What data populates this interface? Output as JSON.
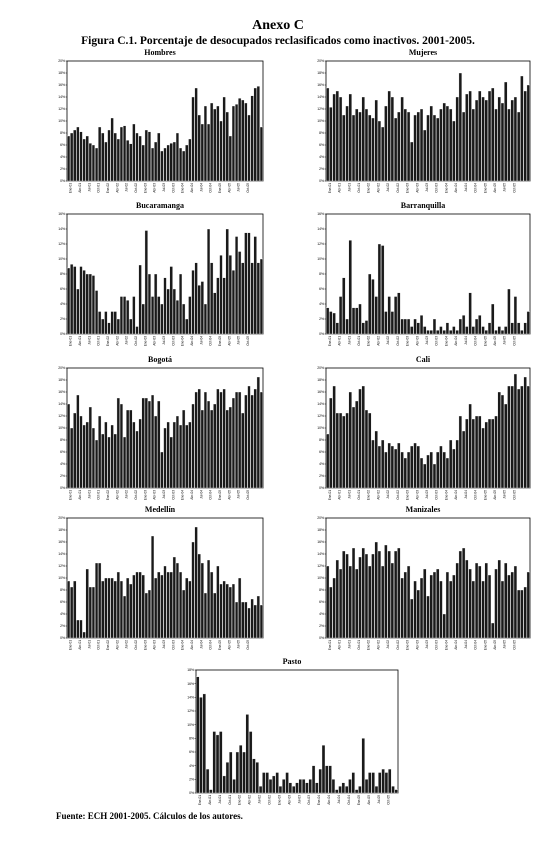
{
  "header": {
    "title": "Anexo C",
    "subtitle": "Figura C.1. Porcentaje de desocupados reclasificados como inactivos. 2001-2005."
  },
  "footnote": "Fuente: ECH 2001-2005. Cálculos de los autores.",
  "colors": {
    "bar_fill": "#1a1a1a",
    "bar_edge": "#ffffff",
    "axis": "#000000"
  },
  "chart_data": [
    {
      "id": "hombres",
      "type": "bar",
      "title": "Hombres",
      "ylim": [
        0,
        20
      ],
      "yticks": [
        "0%",
        "2%",
        "4%",
        "6%",
        "8%",
        "10%",
        "12%",
        "14%",
        "16%",
        "18%",
        "20%"
      ],
      "xticks": [
        "Ene-01",
        "Abr-01",
        "Jul-01",
        "Oct-01",
        "Ene-02",
        "Abr-02",
        "Jul-02",
        "Oct-02",
        "Ene-03",
        "Abr-03",
        "Jul-03",
        "Oct-03",
        "Ene-04",
        "Abr-04",
        "Jul-04",
        "Oct-04",
        "Ene-05",
        "Abr-05",
        "Jul-05",
        "Oct-05"
      ],
      "values": [
        7.5,
        8,
        8.5,
        9,
        8.2,
        7,
        7.5,
        6.3,
        6,
        5.5,
        9,
        8,
        6.5,
        8.5,
        10.5,
        8,
        7,
        9,
        9.2,
        6.8,
        6.2,
        9.5,
        8,
        7.5,
        6,
        8.5,
        8.2,
        5.5,
        6.5,
        8,
        5,
        5.5,
        6,
        6.3,
        6.5,
        8,
        5.5,
        5,
        6,
        7,
        14,
        15.5,
        11,
        9.5,
        12.5,
        9.5,
        13,
        12,
        12.5,
        10,
        14,
        11.5,
        7.5,
        12.5,
        12.8,
        13.8,
        13.5,
        13,
        11,
        14.2,
        15.5,
        15.8,
        9
      ]
    },
    {
      "id": "mujeres",
      "type": "bar",
      "title": "Mujeres",
      "ylim": [
        0,
        20
      ],
      "yticks": [
        "0%",
        "2%",
        "4%",
        "6%",
        "8%",
        "10%",
        "12%",
        "14%",
        "16%",
        "18%",
        "20%"
      ],
      "xticks": [
        "Ene-01",
        "Abr-01",
        "Jul-01",
        "Oct-01",
        "Ene-02",
        "Abr-02",
        "Jul-02",
        "Oct-02",
        "Ene-03",
        "Abr-03",
        "Jul-03",
        "Oct-03",
        "Ene-04",
        "Abr-04",
        "Jul-04",
        "Oct-04",
        "Ene-05",
        "Abr-05",
        "Jul-05",
        "Oct-05"
      ],
      "values": [
        15.5,
        12.3,
        14.5,
        15,
        14,
        11,
        12.5,
        14.5,
        11,
        12,
        11.5,
        14,
        12,
        11,
        10.5,
        13.5,
        10,
        9,
        12.5,
        15,
        14,
        10.5,
        11.5,
        14,
        12,
        11.5,
        6.5,
        11,
        11.5,
        12,
        8.5,
        11,
        12.5,
        11,
        10.5,
        12,
        13,
        12.5,
        12,
        10,
        14,
        18,
        11.5,
        14.5,
        15,
        12,
        13.5,
        15,
        14,
        13.5,
        15,
        15.5,
        12,
        14,
        13,
        16.5,
        12,
        13.5,
        14,
        11.5,
        17.5,
        15,
        16
      ]
    },
    {
      "id": "bucaramanga",
      "type": "bar",
      "title": "Bucaramanga",
      "ylim": [
        0,
        16
      ],
      "yticks": [
        "0%",
        "2%",
        "4%",
        "6%",
        "8%",
        "10%",
        "12%",
        "14%",
        "16%"
      ],
      "xticks": [
        "Ene-01",
        "Abr-01",
        "Jul-01",
        "Oct-01",
        "Ene-02",
        "Abr-02",
        "Jul-02",
        "Oct-02",
        "Ene-03",
        "Abr-03",
        "Jul-03",
        "Oct-03",
        "Ene-04",
        "Abr-04",
        "Jul-04",
        "Oct-04",
        "Ene-05",
        "Abr-05",
        "Jul-05",
        "Oct-05"
      ],
      "values": [
        8.8,
        9.3,
        9,
        6,
        9,
        8.5,
        8,
        8,
        7.8,
        5.8,
        3,
        2,
        3,
        1.5,
        3,
        3,
        2,
        5,
        5,
        4.5,
        2,
        5,
        1,
        9.2,
        4,
        13.8,
        8,
        5,
        8,
        5,
        4,
        7.5,
        6,
        9,
        6,
        4.5,
        8,
        4,
        2,
        5,
        8.5,
        9.5,
        6.5,
        7,
        4,
        14,
        9.5,
        5.5,
        7.5,
        10.5,
        7.5,
        14,
        10.5,
        8.5,
        13,
        11,
        9.5,
        13.5,
        13.5,
        9.5,
        13,
        9.5,
        10
      ]
    },
    {
      "id": "barranquilla",
      "type": "bar",
      "title": "Barranquilla",
      "ylim": [
        0,
        16
      ],
      "yticks": [
        "0%",
        "2%",
        "4%",
        "6%",
        "8%",
        "10%",
        "12%",
        "14%",
        "16%"
      ],
      "xticks": [
        "Ene-01",
        "Abr-01",
        "Jul-01",
        "Oct-01",
        "Ene-02",
        "Abr-02",
        "Jul-02",
        "Oct-02",
        "Ene-03",
        "Abr-03",
        "Jul-03",
        "Oct-03",
        "Ene-04",
        "Abr-04",
        "Jul-04",
        "Oct-04",
        "Ene-05",
        "Abr-05",
        "Jul-05",
        "Oct-05"
      ],
      "values": [
        3.5,
        3,
        2.8,
        1.5,
        5,
        7.5,
        2,
        12.5,
        3.5,
        3.5,
        4,
        1.5,
        1.8,
        8,
        7.3,
        5,
        12,
        11.8,
        3,
        5,
        3,
        5,
        5.5,
        2,
        2,
        2,
        1,
        2,
        1.5,
        2.5,
        1,
        0.5,
        0.5,
        2,
        0.5,
        1,
        0.5,
        1.5,
        0.5,
        1,
        0.5,
        2,
        2.5,
        1,
        5.5,
        1,
        2,
        2.5,
        1,
        0.5,
        1.5,
        4,
        0.5,
        1,
        0.5,
        1,
        6,
        1.5,
        5,
        1.5,
        0.5,
        1.5,
        3
      ]
    },
    {
      "id": "bogota",
      "type": "bar",
      "title": "Bogotá",
      "ylim": [
        0,
        20
      ],
      "yticks": [
        "0%",
        "2%",
        "4%",
        "6%",
        "8%",
        "10%",
        "12%",
        "14%",
        "16%",
        "18%",
        "20%"
      ],
      "xticks": [
        "Ene-01",
        "Abr-01",
        "Jul-01",
        "Oct-01",
        "Ene-02",
        "Abr-02",
        "Jul-02",
        "Oct-02",
        "Ene-03",
        "Abr-03",
        "Jul-03",
        "Oct-03",
        "Ene-04",
        "Abr-04",
        "Jul-04",
        "Oct-04",
        "Ene-05",
        "Abr-05",
        "Jul-05",
        "Oct-05"
      ],
      "values": [
        14,
        10,
        12.5,
        15.5,
        12,
        10.5,
        11,
        13.5,
        10,
        8,
        12,
        9,
        11,
        8.5,
        10.5,
        9,
        15,
        14,
        8.5,
        13,
        13,
        11,
        9.5,
        11.5,
        15,
        15,
        14.5,
        15.5,
        12,
        14.5,
        6,
        10,
        11,
        8.5,
        11,
        12,
        10.5,
        13,
        10.5,
        11,
        14,
        16,
        16.5,
        13,
        16,
        14.5,
        13,
        14,
        16.5,
        16,
        16.5,
        13,
        13.5,
        15,
        16,
        16,
        12.5,
        15.5,
        17,
        15.5,
        16.5,
        18.5,
        16
      ]
    },
    {
      "id": "cali",
      "type": "bar",
      "title": "Cali",
      "ylim": [
        0,
        20
      ],
      "yticks": [
        "0%",
        "2%",
        "4%",
        "6%",
        "8%",
        "10%",
        "12%",
        "14%",
        "16%",
        "18%",
        "20%"
      ],
      "xticks": [
        "Ene-01",
        "Abr-01",
        "Jul-01",
        "Oct-01",
        "Ene-02",
        "Abr-02",
        "Jul-02",
        "Oct-02",
        "Ene-03",
        "Abr-03",
        "Jul-03",
        "Oct-03",
        "Ene-04",
        "Abr-04",
        "Jul-04",
        "Oct-04",
        "Ene-05",
        "Abr-05",
        "Jul-05",
        "Oct-05"
      ],
      "values": [
        9,
        15,
        17,
        12.5,
        12.5,
        12,
        12.5,
        16,
        13.5,
        14.5,
        16.5,
        17,
        13,
        12.5,
        8,
        9.5,
        7,
        8,
        6,
        7.5,
        7,
        6.5,
        7.5,
        6,
        5,
        6,
        7,
        7.5,
        7,
        5,
        4,
        5.5,
        6,
        4,
        6,
        7,
        6,
        5,
        8,
        6.5,
        8,
        12,
        9.5,
        11.5,
        14,
        11.5,
        12,
        12,
        10,
        11,
        11.5,
        11.5,
        12,
        16,
        15.5,
        14,
        17,
        17,
        19,
        16.5,
        17,
        18.5,
        17
      ]
    },
    {
      "id": "medellin",
      "type": "bar",
      "title": "Medellín",
      "ylim": [
        0,
        20
      ],
      "yticks": [
        "0%",
        "2%",
        "4%",
        "6%",
        "8%",
        "10%",
        "12%",
        "14%",
        "16%",
        "18%",
        "20%"
      ],
      "xticks": [
        "Ene-01",
        "Abr-01",
        "Jul-01",
        "Oct-01",
        "Ene-02",
        "Abr-02",
        "Jul-02",
        "Oct-02",
        "Ene-03",
        "Abr-03",
        "Jul-03",
        "Oct-03",
        "Ene-04",
        "Abr-04",
        "Jul-04",
        "Oct-04",
        "Ene-05",
        "Abr-05",
        "Jul-05",
        "Oct-05"
      ],
      "values": [
        9.5,
        8.5,
        9.5,
        3,
        3,
        1,
        11.5,
        8.5,
        8.5,
        12.5,
        12.5,
        9.5,
        10,
        10,
        10,
        9.5,
        11,
        9.5,
        7,
        10,
        9,
        10.5,
        11,
        11,
        10.5,
        7.5,
        8,
        17,
        10,
        11,
        10.5,
        12,
        11,
        11,
        13.5,
        12.5,
        11,
        8,
        10,
        9.5,
        16,
        18.5,
        14,
        12.5,
        7.5,
        13,
        11,
        7.5,
        12,
        9,
        9.5,
        9,
        8.5,
        9,
        6,
        10,
        6,
        6,
        5,
        6.5,
        5.5,
        7,
        5.5
      ]
    },
    {
      "id": "manizales",
      "type": "bar",
      "title": "Manizales",
      "ylim": [
        0,
        20
      ],
      "yticks": [
        "0%",
        "2%",
        "4%",
        "6%",
        "8%",
        "10%",
        "12%",
        "14%",
        "16%",
        "18%",
        "20%"
      ],
      "xticks": [
        "Ene-01",
        "Abr-01",
        "Jul-01",
        "Oct-01",
        "Ene-02",
        "Abr-02",
        "Jul-02",
        "Oct-02",
        "Ene-03",
        "Abr-03",
        "Jul-03",
        "Oct-03",
        "Ene-04",
        "Abr-04",
        "Jul-04",
        "Oct-04",
        "Ene-05",
        "Abr-05",
        "Jul-05",
        "Oct-05"
      ],
      "values": [
        12,
        8.5,
        10,
        13,
        11.5,
        14.5,
        14,
        12,
        15,
        11.5,
        13.5,
        15,
        14,
        12,
        14,
        16,
        14.5,
        12,
        15.5,
        14.5,
        12.5,
        14.5,
        15,
        10,
        11,
        12,
        6.5,
        9.5,
        8,
        10,
        11.5,
        7,
        10.5,
        11,
        11.5,
        9.5,
        4,
        11,
        9.5,
        10.5,
        12.5,
        14.5,
        15,
        13,
        11.5,
        9.5,
        12.5,
        12,
        9.5,
        12.5,
        10.5,
        2.5,
        11.5,
        13,
        9.5,
        12.5,
        10.5,
        11,
        12,
        8,
        8,
        8.5,
        11
      ]
    },
    {
      "id": "pasto",
      "type": "bar",
      "title": "Pasto",
      "ylim": [
        0,
        18
      ],
      "yticks": [
        "0%",
        "2%",
        "4%",
        "6%",
        "8%",
        "10%",
        "12%",
        "14%",
        "16%",
        "18%"
      ],
      "xticks": [
        "Ene-01",
        "Abr-01",
        "Jul-01",
        "Oct-01",
        "Ene-02",
        "Abr-02",
        "Jul-02",
        "Oct-02",
        "Ene-03",
        "Abr-03",
        "Jul-03",
        "Oct-03",
        "Ene-04",
        "Abr-04",
        "Jul-04",
        "Oct-04",
        "Ene-05",
        "Abr-05",
        "Jul-05",
        "Oct-05"
      ],
      "values": [
        17,
        14,
        14.5,
        3.5,
        0.5,
        9,
        8.5,
        9,
        2.5,
        4.5,
        6,
        2,
        6,
        7,
        6,
        11.5,
        9,
        5,
        4.5,
        1,
        3,
        3,
        2,
        2.5,
        3,
        1,
        2,
        3,
        1.5,
        1,
        1.5,
        2,
        2,
        1.5,
        2,
        4,
        1.5,
        3.5,
        7,
        4,
        4,
        2,
        0.5,
        1,
        1.5,
        1,
        2,
        3,
        0.5,
        1,
        8,
        2,
        3,
        3,
        1,
        3,
        3.5,
        3,
        3.5,
        1,
        0.5
      ]
    }
  ]
}
